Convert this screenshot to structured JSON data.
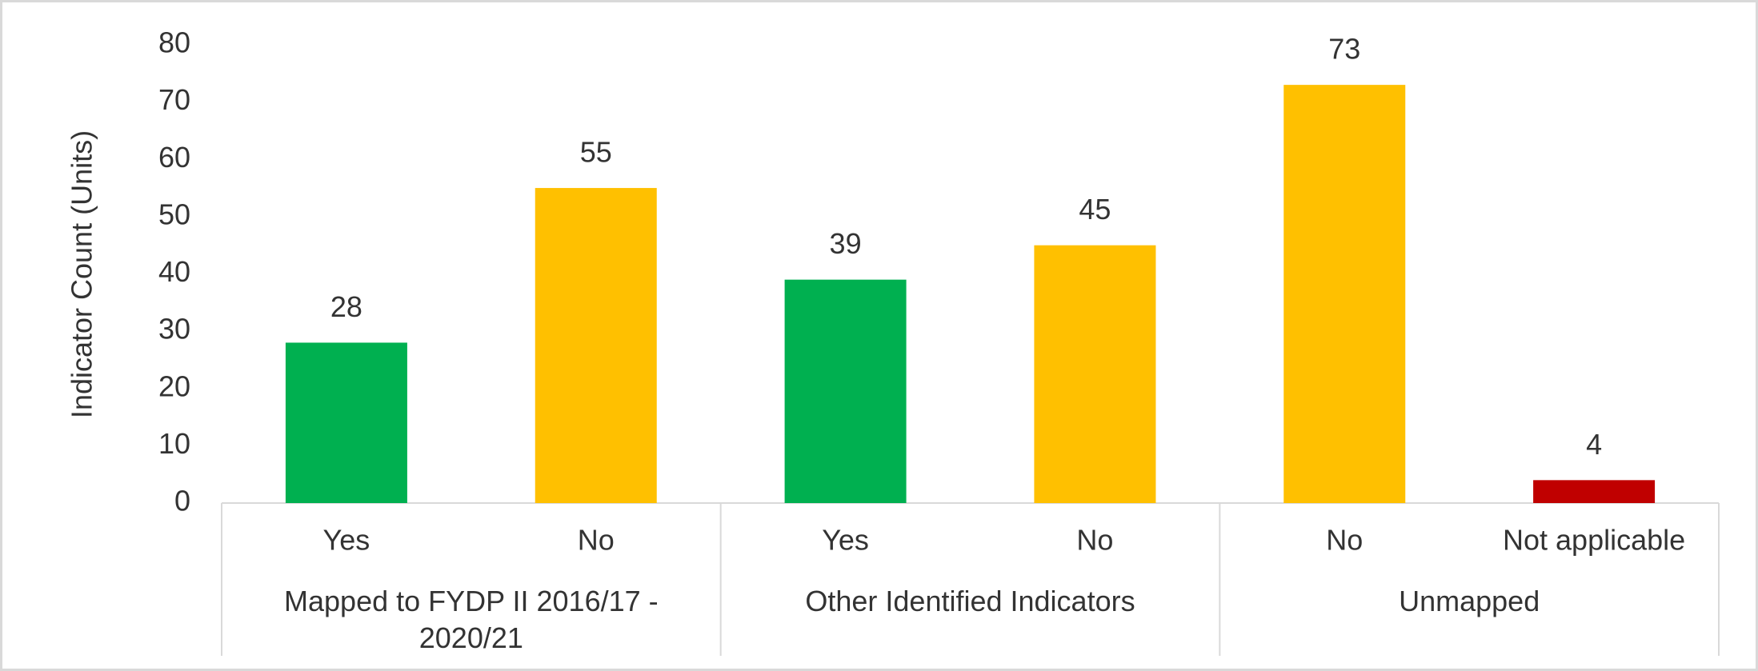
{
  "chart_data": {
    "type": "bar",
    "y_label": "Indicator Count (Units)",
    "categories": [
      "Yes",
      "No",
      "Yes",
      "No",
      "No",
      "Not applicable"
    ],
    "groups": [
      "Mapped to FYDP II 2016/17 - 2020/21",
      "Other Identified Indicators",
      "Unmapped"
    ],
    "values": [
      28,
      55,
      39,
      45,
      73,
      4
    ],
    "colors": [
      "#00b050",
      "#ffc000",
      "#00b050",
      "#ffc000",
      "#ffc000",
      "#c00000"
    ],
    "ylim": [
      0,
      80
    ],
    "yticks": [
      0,
      10,
      20,
      30,
      40,
      50,
      60,
      70,
      80
    ],
    "grid": false
  }
}
